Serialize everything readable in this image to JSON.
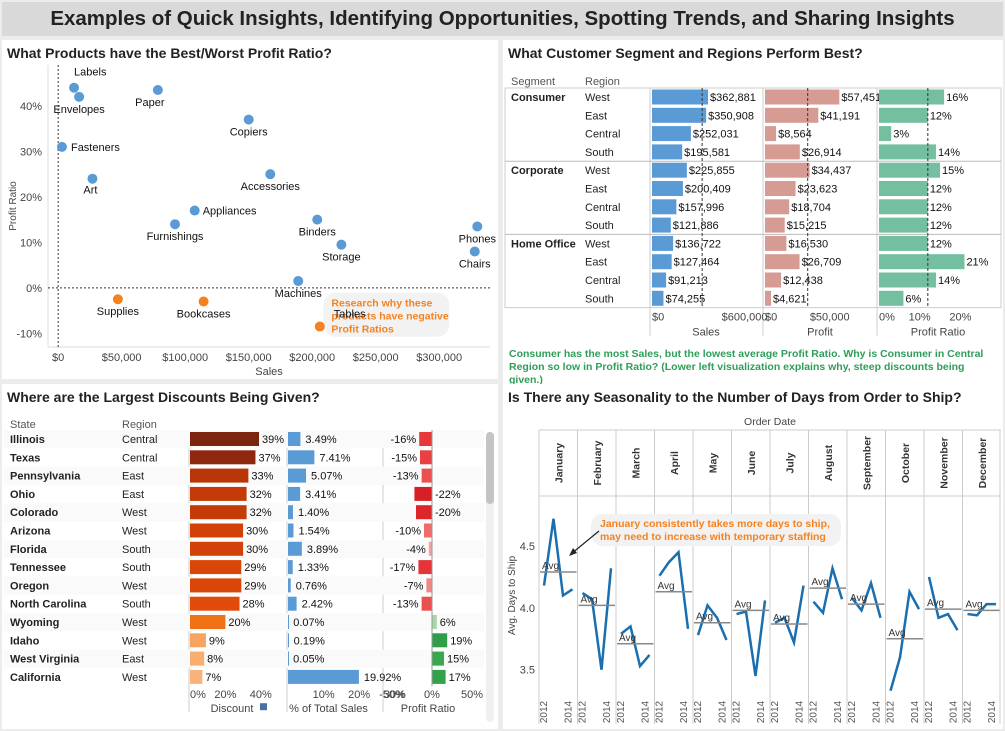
{
  "page": {
    "title": "Examples of Quick Insights, Identifying Opportunities, Spotting Trends, and Sharing Insights"
  },
  "colors": {
    "blue": "#5b9bd5",
    "orange": "#f58220",
    "salmon": "#d69b93",
    "teal": "#73bfa0",
    "line": "#1a6fb0",
    "callout": "#f58220"
  },
  "scatter": {
    "heading": "What Products have the Best/Worst Profit Ratio?",
    "chart_data": {
      "type": "scatter",
      "title": "What Products have the Best/Worst Profit Ratio?",
      "xlabel": "Sales",
      "ylabel": "Profit Ratio",
      "xlim": [
        -8000,
        340000
      ],
      "ylim": [
        -13,
        49
      ],
      "xticks": [
        {
          "v": 0,
          "label": "$0"
        },
        {
          "v": 50000,
          "label": "$50,000"
        },
        {
          "v": 100000,
          "label": "$100,000"
        },
        {
          "v": 150000,
          "label": "$150,000"
        },
        {
          "v": 200000,
          "label": "$200,000"
        },
        {
          "v": 250000,
          "label": "$250,000"
        },
        {
          "v": 300000,
          "label": "$300,000"
        }
      ],
      "yticks": [
        {
          "v": 40,
          "label": "40%"
        },
        {
          "v": 30,
          "label": "30%"
        },
        {
          "v": 20,
          "label": "20%"
        },
        {
          "v": 10,
          "label": "10%"
        },
        {
          "v": 0,
          "label": "0%"
        },
        {
          "v": -10,
          "label": "-10%"
        }
      ],
      "points": [
        {
          "name": "Labels",
          "x": 12500,
          "y": 44,
          "neg": false,
          "lx": 0,
          "ly": -12,
          "anchor": "start"
        },
        {
          "name": "Envelopes",
          "x": 16500,
          "y": 42,
          "neg": false,
          "lx": 0,
          "ly": 16,
          "anchor": "middle"
        },
        {
          "name": "Paper",
          "x": 78500,
          "y": 43.5,
          "neg": false,
          "lx": -8,
          "ly": 16,
          "anchor": "middle"
        },
        {
          "name": "Fasteners",
          "x": 3000,
          "y": 31,
          "neg": false,
          "lx": 9,
          "ly": 4,
          "anchor": "start"
        },
        {
          "name": "Copiers",
          "x": 150000,
          "y": 37,
          "neg": false,
          "lx": 0,
          "ly": 16,
          "anchor": "middle"
        },
        {
          "name": "Art",
          "x": 27000,
          "y": 24,
          "neg": false,
          "lx": -2,
          "ly": 15,
          "anchor": "middle"
        },
        {
          "name": "Accessories",
          "x": 167000,
          "y": 25,
          "neg": false,
          "lx": 0,
          "ly": 16,
          "anchor": "middle"
        },
        {
          "name": "Appliances",
          "x": 107500,
          "y": 17,
          "neg": false,
          "lx": 8,
          "ly": 4,
          "anchor": "start"
        },
        {
          "name": "Furnishings",
          "x": 92000,
          "y": 14,
          "neg": false,
          "lx": 0,
          "ly": 16,
          "anchor": "middle"
        },
        {
          "name": "Binders",
          "x": 204000,
          "y": 15,
          "neg": false,
          "lx": 0,
          "ly": 16,
          "anchor": "middle"
        },
        {
          "name": "Phones",
          "x": 330000,
          "y": 13.5,
          "neg": false,
          "lx": 0,
          "ly": 16,
          "anchor": "middle"
        },
        {
          "name": "Storage",
          "x": 223000,
          "y": 9.5,
          "neg": false,
          "lx": 0,
          "ly": 16,
          "anchor": "middle"
        },
        {
          "name": "Chairs",
          "x": 328000,
          "y": 8,
          "neg": false,
          "lx": 0,
          "ly": 16,
          "anchor": "middle"
        },
        {
          "name": "Machines",
          "x": 189000,
          "y": 1.5,
          "neg": false,
          "lx": 0,
          "ly": 16,
          "anchor": "middle"
        },
        {
          "name": "Supplies",
          "x": 47000,
          "y": -2.5,
          "neg": true,
          "lx": 0,
          "ly": 16,
          "anchor": "middle"
        },
        {
          "name": "Bookcases",
          "x": 114500,
          "y": -3,
          "neg": true,
          "lx": 0,
          "ly": 16,
          "anchor": "middle"
        },
        {
          "name": "Tables",
          "x": 206000,
          "y": -8.5,
          "neg": true,
          "lx": 14,
          "ly": -9,
          "anchor": "start"
        }
      ],
      "annotation": [
        "Research why these",
        "products have negative",
        "Profit Ratios"
      ]
    }
  },
  "segment": {
    "heading": "What Customer Segment and Regions Perform Best?",
    "col_segment": "Segment",
    "col_region": "Region",
    "chart_data": {
      "type": "bar",
      "title": "What Customer Segment and Regions Perform Best?",
      "measures": [
        {
          "name": "Sales",
          "max": 700000,
          "avg": 325000,
          "ticks": [
            {
              "v": 0,
              "label": "$0"
            },
            {
              "v": 600000,
              "label": "$600,000"
            }
          ]
        },
        {
          "name": "Profit",
          "max": 85000,
          "avg": 33000,
          "ticks": [
            {
              "v": 0,
              "label": "$0"
            },
            {
              "v": 50000,
              "label": "$50,000"
            }
          ]
        },
        {
          "name": "Profit Ratio",
          "max": 29,
          "avg": 12,
          "ticks": [
            {
              "v": 0,
              "label": "0%"
            },
            {
              "v": 10,
              "label": "10%"
            },
            {
              "v": 20,
              "label": "20%"
            }
          ]
        }
      ],
      "rows": [
        {
          "segment": "Consumer",
          "region": "West",
          "sales": 362881,
          "sales_label": "$362,881",
          "profit": 57451,
          "profit_label": "$57,451",
          "ratio": 16,
          "ratio_label": "16%"
        },
        {
          "segment": "",
          "region": "East",
          "sales": 350908,
          "sales_label": "$350,908",
          "profit": 41191,
          "profit_label": "$41,191",
          "ratio": 12,
          "ratio_label": "12%"
        },
        {
          "segment": "",
          "region": "Central",
          "sales": 252031,
          "sales_label": "$252,031",
          "profit": 8564,
          "profit_label": "$8,564",
          "ratio": 3,
          "ratio_label": "3%"
        },
        {
          "segment": "",
          "region": "South",
          "sales": 195581,
          "sales_label": "$195,581",
          "profit": 26914,
          "profit_label": "$26,914",
          "ratio": 14,
          "ratio_label": "14%"
        },
        {
          "segment": "Corporate",
          "region": "West",
          "sales": 225855,
          "sales_label": "$225,855",
          "profit": 34437,
          "profit_label": "$34,437",
          "ratio": 15,
          "ratio_label": "15%"
        },
        {
          "segment": "",
          "region": "East",
          "sales": 200409,
          "sales_label": "$200,409",
          "profit": 23623,
          "profit_label": "$23,623",
          "ratio": 12,
          "ratio_label": "12%"
        },
        {
          "segment": "",
          "region": "Central",
          "sales": 157996,
          "sales_label": "$157,996",
          "profit": 18704,
          "profit_label": "$18,704",
          "ratio": 12,
          "ratio_label": "12%"
        },
        {
          "segment": "",
          "region": "South",
          "sales": 121886,
          "sales_label": "$121,886",
          "profit": 15215,
          "profit_label": "$15,215",
          "ratio": 12,
          "ratio_label": "12%"
        },
        {
          "segment": "Home Office",
          "region": "West",
          "sales": 136722,
          "sales_label": "$136,722",
          "profit": 16530,
          "profit_label": "$16,530",
          "ratio": 12,
          "ratio_label": "12%"
        },
        {
          "segment": "",
          "region": "East",
          "sales": 127464,
          "sales_label": "$127,464",
          "profit": 26709,
          "profit_label": "$26,709",
          "ratio": 21,
          "ratio_label": "21%"
        },
        {
          "segment": "",
          "region": "Central",
          "sales": 91213,
          "sales_label": "$91,213",
          "profit": 12438,
          "profit_label": "$12,438",
          "ratio": 14,
          "ratio_label": "14%"
        },
        {
          "segment": "",
          "region": "South",
          "sales": 74255,
          "sales_label": "$74,255",
          "profit": 4621,
          "profit_label": "$4,621",
          "ratio": 6,
          "ratio_label": "6%"
        }
      ]
    },
    "note": "Consumer has the most Sales, but the lowest average Profit Ratio. Why is Consumer in Central Region so low in Profit Ratio? (Lower left visualization explains why, steep discounts being given.)"
  },
  "discounts": {
    "heading": "Where are the Largest Discounts Being Given?",
    "col_state": "State",
    "col_region": "Region",
    "chart_data": {
      "type": "bar",
      "title": "Where are the Largest Discounts Being Given?",
      "axes": [
        {
          "name": "Discount",
          "max": 52,
          "ticks": [
            {
              "v": 0,
              "label": "0%"
            },
            {
              "v": 20,
              "label": "20%"
            },
            {
              "v": 40,
              "label": "40%"
            }
          ]
        },
        {
          "name": "% of Total Sales",
          "min": 0,
          "max": 25,
          "ticks": [
            {
              "v": 10,
              "label": "10%"
            },
            {
              "v": 20,
              "label": "20%"
            },
            {
              "v": 30,
              "label": "30%"
            }
          ]
        },
        {
          "name": "Profit Ratio",
          "min": -60,
          "max": 60,
          "ticks": [
            {
              "v": -50,
              "label": "-50%"
            },
            {
              "v": 0,
              "label": "0%"
            },
            {
              "v": 50,
              "label": "50%"
            }
          ]
        }
      ],
      "rows": [
        {
          "state": "Illinois",
          "region": "Central",
          "discount": 39,
          "discount_label": "39%",
          "share": 3.49,
          "share_label": "3.49%",
          "ratio": -16,
          "ratio_label": "-16%",
          "dcolor": "#7b240e",
          "rcolor": "#e8373b"
        },
        {
          "state": "Texas",
          "region": "Central",
          "discount": 37,
          "discount_label": "37%",
          "share": 7.41,
          "share_label": "7.41%",
          "ratio": -15,
          "ratio_label": "-15%",
          "dcolor": "#8e290f",
          "rcolor": "#e94143"
        },
        {
          "state": "Pennsylvania",
          "region": "East",
          "discount": 33,
          "discount_label": "33%",
          "share": 5.07,
          "share_label": "5.07%",
          "ratio": -13,
          "ratio_label": "-13%",
          "dcolor": "#b83608",
          "rcolor": "#eb5051"
        },
        {
          "state": "Ohio",
          "region": "East",
          "discount": 32,
          "discount_label": "32%",
          "share": 3.41,
          "share_label": "3.41%",
          "ratio": -22,
          "ratio_label": "-22%",
          "dcolor": "#c43b07",
          "rcolor": "#d71f26"
        },
        {
          "state": "Colorado",
          "region": "West",
          "discount": 32,
          "discount_label": "32%",
          "share": 1.4,
          "share_label": "1.40%",
          "ratio": -20,
          "ratio_label": "-20%",
          "dcolor": "#c43b07",
          "rcolor": "#dd262b"
        },
        {
          "state": "Arizona",
          "region": "West",
          "discount": 30,
          "discount_label": "30%",
          "share": 1.54,
          "share_label": "1.54%",
          "ratio": -10,
          "ratio_label": "-10%",
          "dcolor": "#d24107",
          "rcolor": "#ef6c6a"
        },
        {
          "state": "Florida",
          "region": "South",
          "discount": 30,
          "discount_label": "30%",
          "share": 3.89,
          "share_label": "3.89%",
          "ratio": -4,
          "ratio_label": "-4%",
          "dcolor": "#d24107",
          "rcolor": "#f5a3a0"
        },
        {
          "state": "Tennessee",
          "region": "South",
          "discount": 29,
          "discount_label": "29%",
          "share": 1.33,
          "share_label": "1.33%",
          "ratio": -17,
          "ratio_label": "-17%",
          "dcolor": "#da4508",
          "rcolor": "#e5353a"
        },
        {
          "state": "Oregon",
          "region": "West",
          "discount": 29,
          "discount_label": "29%",
          "share": 0.76,
          "share_label": "0.76%",
          "ratio": -7,
          "ratio_label": "-7%",
          "dcolor": "#da4508",
          "rcolor": "#f18785"
        },
        {
          "state": "North Carolina",
          "region": "South",
          "discount": 28,
          "discount_label": "28%",
          "share": 2.42,
          "share_label": "2.42%",
          "ratio": -13,
          "ratio_label": "-13%",
          "dcolor": "#e04b0b",
          "rcolor": "#eb5051"
        },
        {
          "state": "Wyoming",
          "region": "West",
          "discount": 20,
          "discount_label": "20%",
          "share": 0.07,
          "share_label": "0.07%",
          "ratio": 6,
          "ratio_label": "6%",
          "dcolor": "#f07016",
          "rcolor": "#a8d8a8"
        },
        {
          "state": "Idaho",
          "region": "West",
          "discount": 9,
          "discount_label": "9%",
          "share": 0.19,
          "share_label": "0.19%",
          "ratio": 19,
          "ratio_label": "19%",
          "dcolor": "#f8a460",
          "rcolor": "#2e9e48"
        },
        {
          "state": "West Virginia",
          "region": "East",
          "discount": 8,
          "discount_label": "8%",
          "share": 0.05,
          "share_label": "0.05%",
          "ratio": 15,
          "ratio_label": "15%",
          "dcolor": "#f9ad6e",
          "rcolor": "#37a750"
        },
        {
          "state": "California",
          "region": "West",
          "discount": 7,
          "discount_label": "7%",
          "share": 19.92,
          "share_label": "19.92%",
          "ratio": 17,
          "ratio_label": "17%",
          "dcolor": "#f9b27a",
          "rcolor": "#32a24b"
        }
      ]
    }
  },
  "seasonality": {
    "heading": "Is There any Seasonality to the Number of Days from Order to Ship?",
    "chart_data": {
      "type": "line",
      "title": "Is There any Seasonality to the Number of Days from Order to Ship?",
      "top_label": "Order Date",
      "ylabel": "Avg. Days to Ship",
      "ylim": [
        3.32,
        4.88
      ],
      "yticks": [
        {
          "v": 4.5,
          "label": "4.5"
        },
        {
          "v": 4.0,
          "label": "4.0"
        },
        {
          "v": 3.5,
          "label": "3.5"
        }
      ],
      "years": [
        "2012",
        "2014"
      ],
      "avg_label": "Avg",
      "months": [
        {
          "name": "January",
          "values": [
            4.18,
            4.72,
            4.1,
            4.15
          ],
          "avg": 4.29
        },
        {
          "name": "February",
          "values": [
            4.12,
            4.07,
            3.5,
            4.32
          ],
          "avg": 4.02
        },
        {
          "name": "March",
          "values": [
            3.79,
            3.85,
            3.53,
            3.62
          ],
          "avg": 3.71
        },
        {
          "name": "April",
          "values": [
            4.26,
            4.37,
            4.45,
            3.83
          ],
          "avg": 4.13
        },
        {
          "name": "May",
          "values": [
            3.78,
            4.02,
            3.92,
            3.74
          ],
          "avg": 3.88
        },
        {
          "name": "June",
          "values": [
            3.95,
            3.97,
            3.45,
            4.06
          ],
          "avg": 3.98
        },
        {
          "name": "July",
          "values": [
            3.88,
            3.92,
            3.72,
            4.18
          ],
          "avg": 3.87
        },
        {
          "name": "August",
          "values": [
            4.05,
            3.96,
            4.32,
            4.07
          ],
          "avg": 4.16
        },
        {
          "name": "September",
          "values": [
            4.08,
            3.98,
            4.2,
            3.92
          ],
          "avg": 4.03
        },
        {
          "name": "October",
          "values": [
            3.33,
            3.6,
            4.13,
            3.99
          ],
          "avg": 3.75
        },
        {
          "name": "November",
          "values": [
            4.25,
            3.92,
            3.95,
            3.82
          ],
          "avg": 3.99
        },
        {
          "name": "December",
          "values": [
            3.95,
            3.94,
            4.03,
            4.03
          ],
          "avg": 3.98
        }
      ],
      "annotation": [
        "January consistently takes more days to ship,",
        "may need to increase with temporary staffing"
      ]
    }
  }
}
